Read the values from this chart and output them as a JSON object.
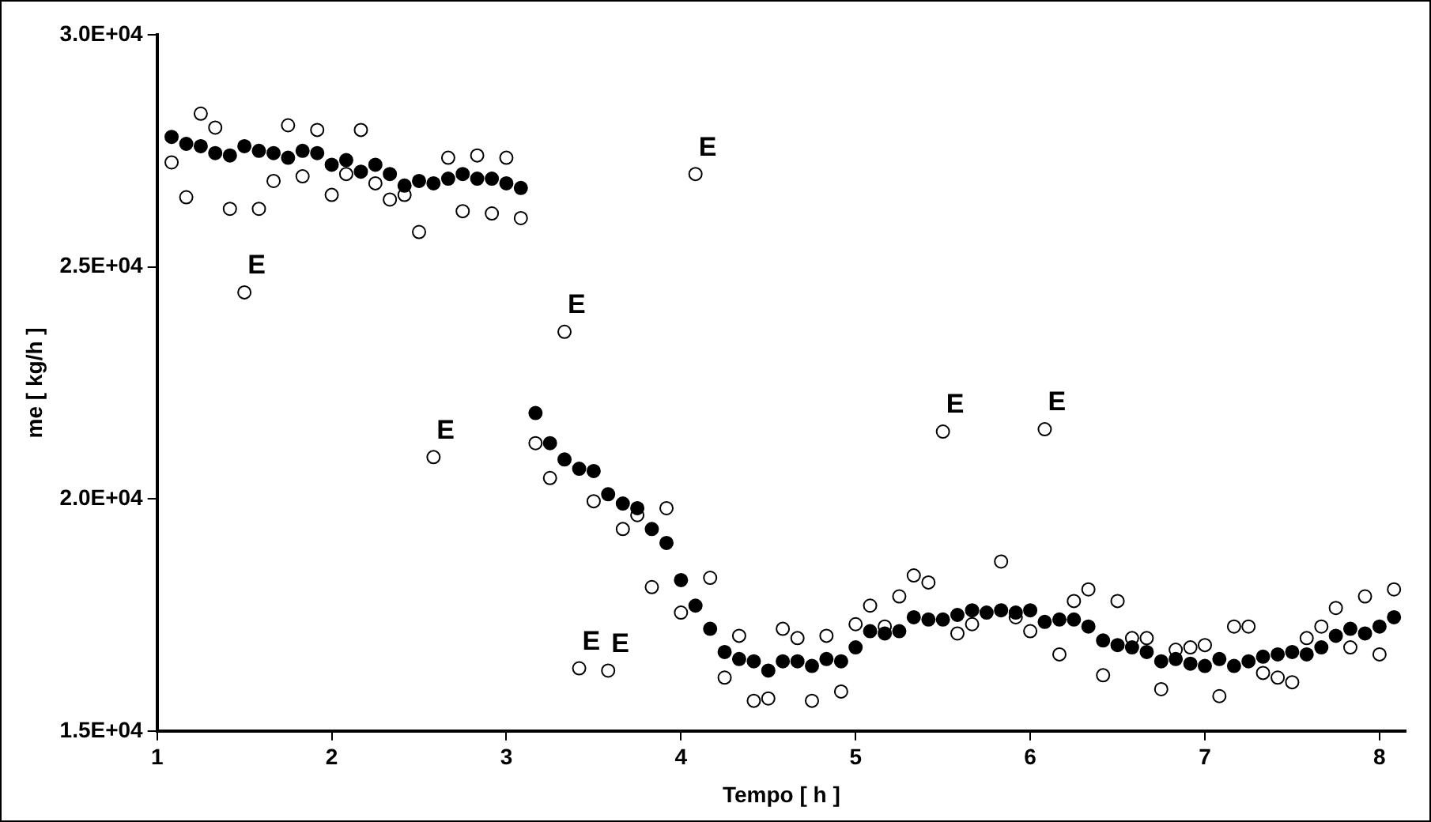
{
  "chart_data": {
    "type": "scatter",
    "xlabel": "Tempo [ h ]",
    "ylabel": "me [ kg/h ]",
    "x": [
      1.083,
      1.167,
      1.25,
      1.333,
      1.417,
      1.5,
      1.583,
      1.667,
      1.75,
      1.833,
      1.917,
      2,
      2.083,
      2.167,
      2.25,
      2.333,
      2.417,
      2.5,
      2.583,
      2.667,
      2.75,
      2.833,
      2.917,
      3,
      3.083,
      3.167,
      3.25,
      3.333,
      3.417,
      3.5,
      3.583,
      3.667,
      3.75,
      3.833,
      3.917,
      4,
      4.083,
      4.167,
      4.25,
      4.333,
      4.417,
      4.5,
      4.583,
      4.667,
      4.75,
      4.833,
      4.917,
      5,
      5.083,
      5.167,
      5.25,
      5.333,
      5.417,
      5.5,
      5.583,
      5.667,
      5.75,
      5.833,
      5.917,
      6,
      6.083,
      6.167,
      6.25,
      6.333,
      6.417,
      6.5,
      6.583,
      6.667,
      6.75,
      6.833,
      6.917,
      7,
      7.083,
      7.167,
      7.25,
      7.333,
      7.417,
      7.5,
      7.583,
      7.667,
      7.75,
      7.833,
      7.917,
      8,
      8.083
    ],
    "series": [
      {
        "color": "#000000",
        "values": [
          27800,
          27650,
          27600,
          27450,
          27400,
          27600,
          27500,
          27450,
          27350,
          27500,
          27450,
          27200,
          27300,
          27050,
          27200,
          27000,
          26750,
          26850,
          26800,
          26900,
          27000,
          26900,
          26900,
          26800,
          26700,
          21850,
          21200,
          20850,
          20650,
          20600,
          20100,
          19900,
          19800,
          19350,
          19050,
          18250,
          17700,
          17200,
          16700,
          16550,
          16500,
          16300,
          16500,
          16500,
          16400,
          16550,
          16500,
          16800,
          17150,
          17100,
          17150,
          17450,
          17400,
          17400,
          17500,
          17600,
          17550,
          17600,
          17550,
          17600,
          17350,
          17400,
          17400,
          17250,
          16950,
          16850,
          16800,
          16700,
          16500,
          16550,
          16450,
          16400,
          16550,
          16400,
          16500,
          16600,
          16650,
          16700,
          16650,
          16800,
          17050,
          17200,
          17100,
          17250,
          17450
        ]
      },
      {
        "color": "#ffffff",
        "values": [
          27250,
          26500,
          28300,
          28000,
          26250,
          24450,
          26250,
          26850,
          28050,
          26950,
          27950,
          26550,
          27000,
          27950,
          26800,
          26450,
          26550,
          25750,
          20900,
          27350,
          26200,
          27400,
          26150,
          27350,
          26050,
          21200,
          20450,
          23600,
          16350,
          19950,
          16300,
          19350,
          19650,
          18100,
          19800,
          17550,
          27000,
          18300,
          16150,
          17050,
          15650,
          15700,
          17200,
          17000,
          15650,
          17050,
          15850,
          17300,
          17700,
          17250,
          17900,
          18350,
          18200,
          21450,
          17100,
          17300,
          null,
          18650,
          17450,
          17150,
          21500,
          16650,
          17800,
          18050,
          16200,
          17800,
          17000,
          17000,
          15900,
          16750,
          16800,
          16850,
          15750,
          17250,
          17250,
          16250,
          16150,
          16050,
          17000,
          17250,
          17650,
          16800,
          17900,
          16650,
          18050
        ]
      }
    ],
    "xlim": [
      1,
      8.15
    ],
    "xticks": [
      1,
      2,
      3,
      4,
      5,
      6,
      7,
      8
    ],
    "ylim": [
      15000,
      30000
    ],
    "yticks": [
      {
        "value": 15000,
        "label": "1.5E+04"
      },
      {
        "value": 20000,
        "label": "2.0E+04"
      },
      {
        "value": 25000,
        "label": "2.5E+04"
      },
      {
        "value": 30000,
        "label": "3.0E+04"
      }
    ],
    "marker": "circle",
    "grid": false,
    "legend": false,
    "annotations": [
      {
        "text": "E",
        "x": 1.5,
        "y": 24450
      },
      {
        "text": "E",
        "x": 2.583,
        "y": 20900
      },
      {
        "text": "E",
        "x": 3.333,
        "y": 23600
      },
      {
        "text": "E",
        "x": 3.417,
        "y": 16350
      },
      {
        "text": "E",
        "x": 3.583,
        "y": 16300
      },
      {
        "text": "E",
        "x": 4.083,
        "y": 27000
      },
      {
        "text": "E",
        "x": 5.5,
        "y": 21450
      },
      {
        "text": "E",
        "x": 6.083,
        "y": 21500
      }
    ]
  }
}
